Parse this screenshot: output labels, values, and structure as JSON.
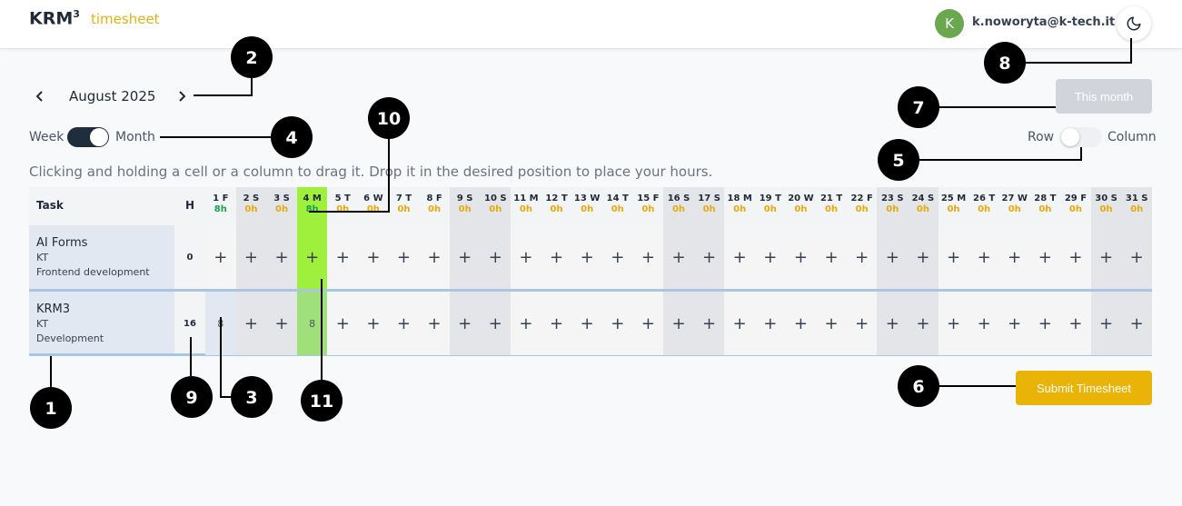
{
  "header": {
    "brand": "KRM",
    "brand_sup": "3",
    "app_name": "timesheet",
    "avatar_letter": "K",
    "user_email": "k.noworyta@k-tech.it",
    "theme_icon": "moon-icon"
  },
  "nav": {
    "month": "August 2025",
    "this_month_label": "This month"
  },
  "view_toggle": {
    "left": "Week",
    "right": "Month",
    "state": "Month"
  },
  "orientation_toggle": {
    "left": "Row",
    "right": "Column",
    "state": "Row"
  },
  "hint": "Clicking and holding a cell or a column to drag it. Drop it in the desired position to place your hours.",
  "table": {
    "task_header": "Task",
    "hours_header": "H",
    "days": [
      {
        "label": "1 F",
        "hours": "8h"
      },
      {
        "label": "2 S",
        "hours": "0h"
      },
      {
        "label": "3 S",
        "hours": "0h"
      },
      {
        "label": "4 M",
        "hours": "8h"
      },
      {
        "label": "5 T",
        "hours": "0h"
      },
      {
        "label": "6 W",
        "hours": "0h"
      },
      {
        "label": "7 T",
        "hours": "0h"
      },
      {
        "label": "8 F",
        "hours": "0h"
      },
      {
        "label": "9 S",
        "hours": "0h"
      },
      {
        "label": "10 S",
        "hours": "0h"
      },
      {
        "label": "11 M",
        "hours": "0h"
      },
      {
        "label": "12 T",
        "hours": "0h"
      },
      {
        "label": "13 W",
        "hours": "0h"
      },
      {
        "label": "14 T",
        "hours": "0h"
      },
      {
        "label": "15 F",
        "hours": "0h"
      },
      {
        "label": "16 S",
        "hours": "0h"
      },
      {
        "label": "17 S",
        "hours": "0h"
      },
      {
        "label": "18 M",
        "hours": "0h"
      },
      {
        "label": "19 T",
        "hours": "0h"
      },
      {
        "label": "20 W",
        "hours": "0h"
      },
      {
        "label": "21 T",
        "hours": "0h"
      },
      {
        "label": "22 F",
        "hours": "0h"
      },
      {
        "label": "23 S",
        "hours": "0h"
      },
      {
        "label": "24 S",
        "hours": "0h"
      },
      {
        "label": "25 M",
        "hours": "0h"
      },
      {
        "label": "26 T",
        "hours": "0h"
      },
      {
        "label": "27 W",
        "hours": "0h"
      },
      {
        "label": "28 T",
        "hours": "0h"
      },
      {
        "label": "29 F",
        "hours": "0h"
      },
      {
        "label": "30 S",
        "hours": "0h"
      },
      {
        "label": "31 S",
        "hours": "0h"
      }
    ],
    "add_symbol": "+",
    "rows": [
      {
        "name": "AI Forms",
        "client": "KT",
        "activity": "Frontend development",
        "total": "0",
        "cells": {}
      },
      {
        "name": "KRM3",
        "client": "KT",
        "activity": "Development",
        "total": "16",
        "cells": {
          "1": "8",
          "4": "8"
        }
      }
    ]
  },
  "submit_label": "Submit Timesheet",
  "callouts": [
    "1",
    "2",
    "3",
    "4",
    "5",
    "6",
    "7",
    "8",
    "9",
    "10",
    "11"
  ],
  "colors": {
    "accent": "#eab308",
    "today": "#9ef03c",
    "hours_full": "#16a34a",
    "hours_zero": "#e8a90a",
    "weekend": "#e4e5e8",
    "task_bg": "#e1e8f1"
  }
}
